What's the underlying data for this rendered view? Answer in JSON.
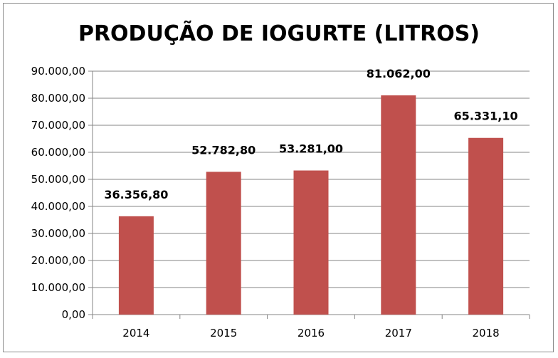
{
  "chart_data": {
    "type": "bar",
    "title": "PRODUÇÃO DE IOGURTE (LITROS)",
    "xlabel": "",
    "ylabel": "",
    "categories": [
      "2014",
      "2015",
      "2016",
      "2017",
      "2018"
    ],
    "values": [
      36356.8,
      52782.8,
      53281.0,
      81062.0,
      65331.1
    ],
    "data_labels": [
      "36.356,80",
      "52.782,80",
      "53.281,00",
      "81.062,00",
      "65.331,10"
    ],
    "ylim": [
      0,
      90000
    ],
    "yticks": [
      0,
      10000,
      20000,
      30000,
      40000,
      50000,
      60000,
      70000,
      80000,
      90000
    ],
    "ytick_labels": [
      "0,00",
      "10.000,00",
      "20.000,00",
      "30.000,00",
      "40.000,00",
      "50.000,00",
      "60.000,00",
      "70.000,00",
      "80.000,00",
      "90.000,00"
    ],
    "grid": true,
    "legend": "none",
    "bar_color": "#c0504d",
    "grid_color": "#868686"
  }
}
